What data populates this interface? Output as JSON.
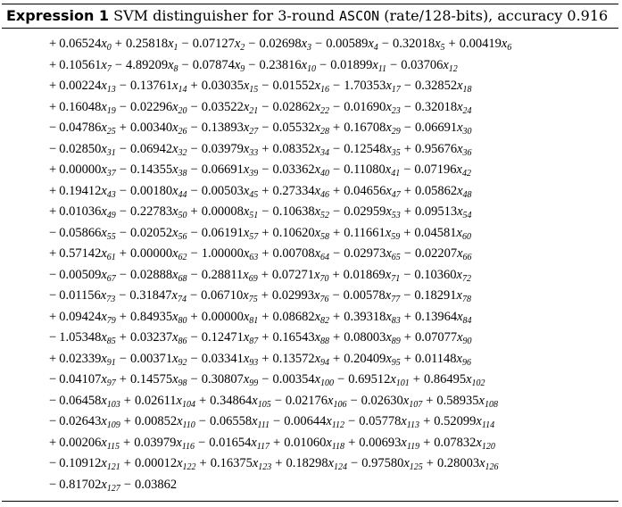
{
  "caption": {
    "label": "Expression 1",
    "text_before": " SVM distinguisher for 3-round ",
    "cipher": "ASCON",
    "text_after": " (rate/128-bits), accuracy 0.916"
  },
  "lines": [
    [
      [
        "+",
        "0.06524",
        0
      ],
      [
        "+",
        "0.25818",
        1
      ],
      [
        "−",
        "0.07127",
        2
      ],
      [
        "−",
        "0.02698",
        3
      ],
      [
        "−",
        "0.00589",
        4
      ],
      [
        "−",
        "0.32018",
        5
      ],
      [
        "+",
        "0.00419",
        6
      ]
    ],
    [
      [
        "+",
        "0.10561",
        7
      ],
      [
        "−",
        "4.89209",
        8
      ],
      [
        "−",
        "0.07874",
        9
      ],
      [
        "−",
        "0.23816",
        10
      ],
      [
        "−",
        "0.01899",
        11
      ],
      [
        "−",
        "0.03706",
        12
      ]
    ],
    [
      [
        "+",
        "0.00224",
        13
      ],
      [
        "−",
        "0.13761",
        14
      ],
      [
        "+",
        "0.03035",
        15
      ],
      [
        "−",
        "0.01552",
        16
      ],
      [
        "−",
        "1.70353",
        17
      ],
      [
        "−",
        "0.32852",
        18
      ]
    ],
    [
      [
        "+",
        "0.16048",
        19
      ],
      [
        "−",
        "0.02296",
        20
      ],
      [
        "−",
        "0.03522",
        21
      ],
      [
        "−",
        "0.02862",
        22
      ],
      [
        "−",
        "0.01690",
        23
      ],
      [
        "−",
        "0.32018",
        24
      ]
    ],
    [
      [
        "−",
        "0.04786",
        25
      ],
      [
        "+",
        "0.00340",
        26
      ],
      [
        "−",
        "0.13893",
        27
      ],
      [
        "−",
        "0.05532",
        28
      ],
      [
        "+",
        "0.16708",
        29
      ],
      [
        "−",
        "0.06691",
        30
      ]
    ],
    [
      [
        "−",
        "0.02850",
        31
      ],
      [
        "−",
        "0.06942",
        32
      ],
      [
        "−",
        "0.03979",
        33
      ],
      [
        "+",
        "0.08352",
        34
      ],
      [
        "−",
        "0.12548",
        35
      ],
      [
        "+",
        "0.95676",
        36
      ]
    ],
    [
      [
        "+",
        "0.00000",
        37
      ],
      [
        "−",
        "0.14355",
        38
      ],
      [
        "−",
        "0.06691",
        39
      ],
      [
        "−",
        "0.03362",
        40
      ],
      [
        "−",
        "0.11080",
        41
      ],
      [
        "−",
        "0.07196",
        42
      ]
    ],
    [
      [
        "+",
        "0.19412",
        43
      ],
      [
        "−",
        "0.00180",
        44
      ],
      [
        "−",
        "0.00503",
        45
      ],
      [
        "+",
        "0.27334",
        46
      ],
      [
        "+",
        "0.04656",
        47
      ],
      [
        "+",
        "0.05862",
        48
      ]
    ],
    [
      [
        "+",
        "0.01036",
        49
      ],
      [
        "−",
        "0.22783",
        50
      ],
      [
        "+",
        "0.00008",
        51
      ],
      [
        "−",
        "0.10638",
        52
      ],
      [
        "−",
        "0.02959",
        53
      ],
      [
        "+",
        "0.09513",
        54
      ]
    ],
    [
      [
        "−",
        "0.05866",
        55
      ],
      [
        "−",
        "0.02052",
        56
      ],
      [
        "−",
        "0.06191",
        57
      ],
      [
        "+",
        "0.10620",
        58
      ],
      [
        "+",
        "0.11661",
        59
      ],
      [
        "+",
        "0.04581",
        60
      ]
    ],
    [
      [
        "+",
        "0.57142",
        61
      ],
      [
        "+",
        "0.00000",
        62
      ],
      [
        "−",
        "1.00000",
        63
      ],
      [
        "+",
        "0.00708",
        64
      ],
      [
        "−",
        "0.02973",
        65
      ],
      [
        "−",
        "0.02207",
        66
      ]
    ],
    [
      [
        "−",
        "0.00509",
        67
      ],
      [
        "−",
        "0.02888",
        68
      ],
      [
        "−",
        "0.28811",
        69
      ],
      [
        "+",
        "0.07271",
        70
      ],
      [
        "+",
        "0.01869",
        71
      ],
      [
        "−",
        "0.10360",
        72
      ]
    ],
    [
      [
        "−",
        "0.01156",
        73
      ],
      [
        "−",
        "0.31847",
        74
      ],
      [
        "−",
        "0.06710",
        75
      ],
      [
        "+",
        "0.02993",
        76
      ],
      [
        "−",
        "0.00578",
        77
      ],
      [
        "−",
        "0.18291",
        78
      ]
    ],
    [
      [
        "+",
        "0.09424",
        79
      ],
      [
        "+",
        "0.84935",
        80
      ],
      [
        "+",
        "0.00000",
        81
      ],
      [
        "+",
        "0.08682",
        82
      ],
      [
        "+",
        "0.39318",
        83
      ],
      [
        "+",
        "0.13964",
        84
      ]
    ],
    [
      [
        "−",
        "1.05348",
        85
      ],
      [
        "+",
        "0.03237",
        86
      ],
      [
        "−",
        "0.12471",
        87
      ],
      [
        "+",
        "0.16543",
        88
      ],
      [
        "+",
        "0.08003",
        89
      ],
      [
        "+",
        "0.07077",
        90
      ]
    ],
    [
      [
        "+",
        "0.02339",
        91
      ],
      [
        "−",
        "0.00371",
        92
      ],
      [
        "−",
        "0.03341",
        93
      ],
      [
        "+",
        "0.13572",
        94
      ],
      [
        "+",
        "0.20409",
        95
      ],
      [
        "+",
        "0.01148",
        96
      ]
    ],
    [
      [
        "−",
        "0.04107",
        97
      ],
      [
        "+",
        "0.14575",
        98
      ],
      [
        "−",
        "0.30807",
        99
      ],
      [
        "−",
        "0.00354",
        100
      ],
      [
        "−",
        "0.69512",
        101
      ],
      [
        "+",
        "0.86495",
        102
      ]
    ],
    [
      [
        "−",
        "0.06458",
        103
      ],
      [
        "+",
        "0.02611",
        104
      ],
      [
        "+",
        "0.34864",
        105
      ],
      [
        "−",
        "0.02176",
        106
      ],
      [
        "−",
        "0.02630",
        107
      ],
      [
        "+",
        "0.58935",
        108
      ]
    ],
    [
      [
        "−",
        "0.02643",
        109
      ],
      [
        "+",
        "0.00852",
        110
      ],
      [
        "−",
        "0.06558",
        111
      ],
      [
        "−",
        "0.00644",
        112
      ],
      [
        "−",
        "0.05778",
        113
      ],
      [
        "+",
        "0.52099",
        114
      ]
    ],
    [
      [
        "+",
        "0.00206",
        115
      ],
      [
        "+",
        "0.03979",
        116
      ],
      [
        "−",
        "0.01654",
        117
      ],
      [
        "+",
        "0.01060",
        118
      ],
      [
        "+",
        "0.00693",
        119
      ],
      [
        "+",
        "0.07832",
        120
      ]
    ],
    [
      [
        "−",
        "0.10912",
        121
      ],
      [
        "+",
        "0.00012",
        122
      ],
      [
        "+",
        "0.16375",
        123
      ],
      [
        "+",
        "0.18298",
        124
      ],
      [
        "−",
        "0.97580",
        125
      ],
      [
        "+",
        "0.28003",
        126
      ]
    ],
    [
      [
        "−",
        "0.81702",
        127
      ],
      [
        "−",
        "0.03862",
        null
      ]
    ]
  ],
  "variable_symbol": "x"
}
